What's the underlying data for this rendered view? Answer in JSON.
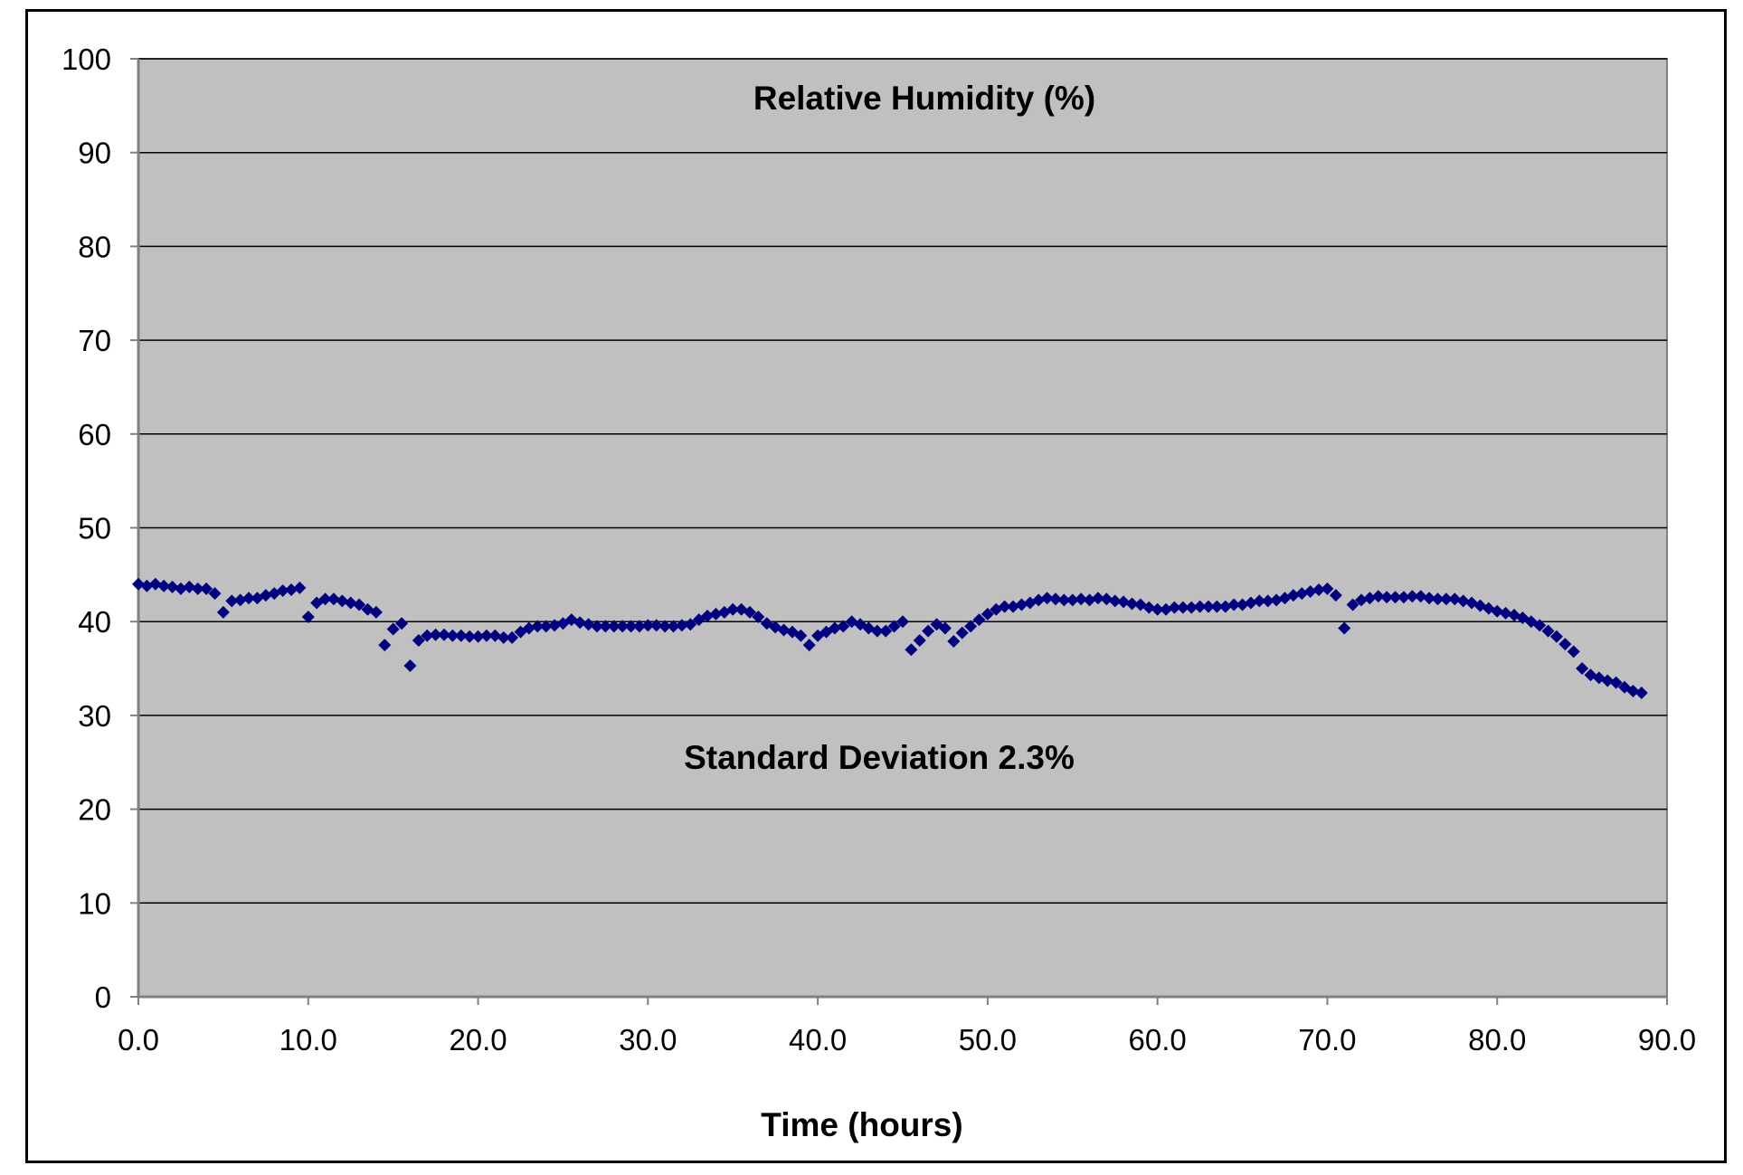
{
  "chart_data": {
    "type": "scatter",
    "title": "",
    "xlabel": "Time (hours)",
    "ylabel": "",
    "annotations": [
      "Relative Humidity (%)",
      "Standard Deviation 2.3%"
    ],
    "xlim": [
      0,
      90
    ],
    "ylim": [
      0,
      100
    ],
    "x_ticks": [
      "0.0",
      "10.0",
      "20.0",
      "30.0",
      "40.0",
      "50.0",
      "60.0",
      "70.0",
      "80.0",
      "90.0"
    ],
    "y_ticks": [
      "0",
      "10",
      "20",
      "30",
      "40",
      "50",
      "60",
      "70",
      "80",
      "90",
      "100"
    ],
    "x_tick_values": [
      0,
      10,
      20,
      30,
      40,
      50,
      60,
      70,
      80,
      90
    ],
    "y_tick_values": [
      0,
      10,
      20,
      30,
      40,
      50,
      60,
      70,
      80,
      90,
      100
    ],
    "grid": "horizontal",
    "legend": "none",
    "colors": {
      "plot_background": "#c0c0c0",
      "marker": "#000080",
      "gridline": "#000000",
      "axis": "#808080"
    },
    "series": [
      {
        "marker": "diamond",
        "x": [
          0,
          0.5,
          1,
          1.5,
          2,
          2.5,
          3,
          3.5,
          4,
          4.5,
          5,
          5.5,
          6,
          6.5,
          7,
          7.5,
          8,
          8.5,
          9,
          9.5,
          10,
          10.5,
          11,
          11.5,
          12,
          12.5,
          13,
          13.5,
          14,
          14.5,
          15,
          15.5,
          16,
          16.5,
          17,
          17.5,
          18,
          18.5,
          19,
          19.5,
          20,
          20.5,
          21,
          21.5,
          22,
          22.5,
          23,
          23.5,
          24,
          24.5,
          25,
          25.5,
          26,
          26.5,
          27,
          27.5,
          28,
          28.5,
          29,
          29.5,
          30,
          30.5,
          31,
          31.5,
          32,
          32.5,
          33,
          33.5,
          34,
          34.5,
          35,
          35.5,
          36,
          36.5,
          37,
          37.5,
          38,
          38.5,
          39,
          39.5,
          40,
          40.5,
          41,
          41.5,
          42,
          42.5,
          43,
          43.5,
          44,
          44.5,
          45,
          45.5,
          46,
          46.5,
          47,
          47.5,
          48,
          48.5,
          49,
          49.5,
          50,
          50.5,
          51,
          51.5,
          52,
          52.5,
          53,
          53.5,
          54,
          54.5,
          55,
          55.5,
          56,
          56.5,
          57,
          57.5,
          58,
          58.5,
          59,
          59.5,
          60,
          60.5,
          61,
          61.5,
          62,
          62.5,
          63,
          63.5,
          64,
          64.5,
          65,
          65.5,
          66,
          66.5,
          67,
          67.5,
          68,
          68.5,
          69,
          69.5,
          70,
          70.5,
          71,
          71.5,
          72,
          72.5,
          73,
          73.5,
          74,
          74.5,
          75,
          75.5,
          76,
          76.5,
          77,
          77.5,
          78,
          78.5,
          79,
          79.5,
          80,
          80.5,
          81,
          81.5,
          82,
          82.5,
          83,
          83.5,
          84,
          84.5,
          85,
          85.5,
          86,
          86.5,
          87,
          87.5,
          88,
          88.5
        ],
        "y": [
          44,
          43.8,
          44,
          43.8,
          43.7,
          43.5,
          43.7,
          43.5,
          43.5,
          43,
          41,
          42.2,
          42.3,
          42.5,
          42.5,
          42.8,
          43,
          43.3,
          43.4,
          43.6,
          40.5,
          42,
          42.4,
          42.4,
          42.2,
          42,
          41.8,
          41.3,
          41,
          37.5,
          39.2,
          39.8,
          35.3,
          38,
          38.5,
          38.6,
          38.6,
          38.5,
          38.5,
          38.4,
          38.4,
          38.5,
          38.5,
          38.3,
          38.3,
          38.9,
          39.3,
          39.5,
          39.5,
          39.6,
          39.8,
          40.2,
          39.9,
          39.7,
          39.5,
          39.5,
          39.5,
          39.5,
          39.5,
          39.5,
          39.6,
          39.6,
          39.5,
          39.5,
          39.6,
          39.7,
          40.2,
          40.6,
          40.8,
          41,
          41.3,
          41.3,
          41,
          40.5,
          39.8,
          39.4,
          39.1,
          38.9,
          38.5,
          37.5,
          38.5,
          38.9,
          39.3,
          39.5,
          40,
          39.7,
          39.3,
          39,
          39,
          39.5,
          40,
          37,
          38,
          39,
          39.7,
          39.3,
          37.9,
          38.8,
          39.5,
          40.2,
          40.8,
          41.3,
          41.6,
          41.6,
          41.8,
          42,
          42.3,
          42.5,
          42.4,
          42.3,
          42.3,
          42.4,
          42.3,
          42.5,
          42.4,
          42.2,
          42.1,
          41.9,
          41.8,
          41.5,
          41.3,
          41.3,
          41.5,
          41.5,
          41.5,
          41.6,
          41.6,
          41.6,
          41.6,
          41.8,
          41.8,
          42,
          42.2,
          42.2,
          42.3,
          42.5,
          42.8,
          43,
          43.2,
          43.4,
          43.5,
          42.8,
          39.3,
          41.8,
          42.3,
          42.5,
          42.7,
          42.6,
          42.6,
          42.6,
          42.7,
          42.7,
          42.5,
          42.4,
          42.4,
          42.4,
          42.2,
          42,
          41.7,
          41.4,
          41.1,
          40.9,
          40.7,
          40.4,
          40,
          39.6,
          39,
          38.4,
          37.6,
          36.8,
          35,
          34.3,
          34,
          33.7,
          33.5,
          33,
          32.6,
          32.4
        ]
      }
    ]
  }
}
